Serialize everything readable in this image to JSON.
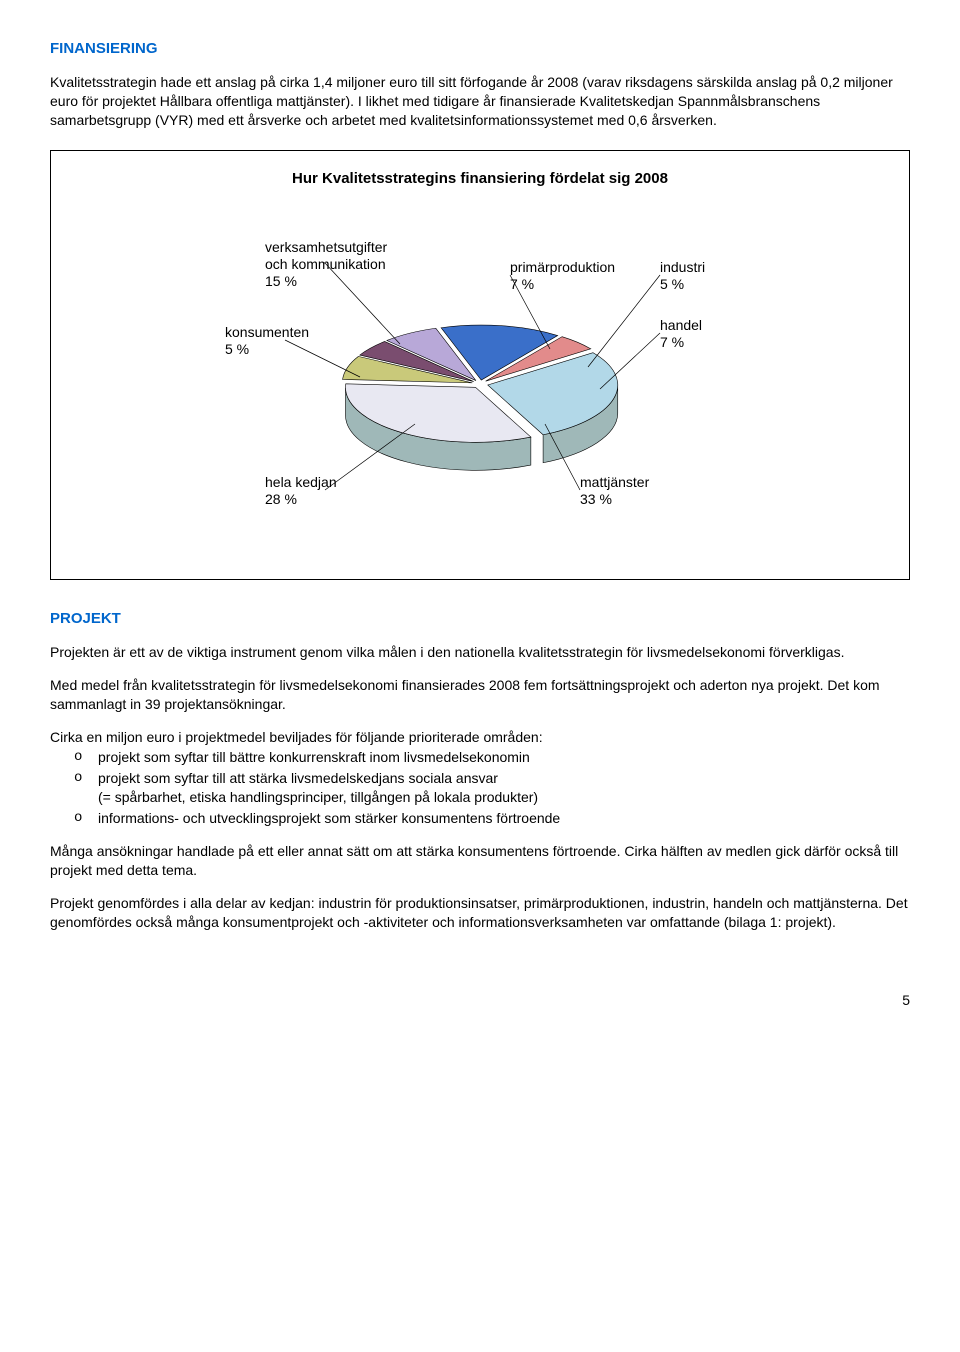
{
  "heading1": "FINANSIERING",
  "para1": "Kvalitetsstrategin hade ett anslag på cirka 1,4 miljoner euro till sitt förfogande år 2008 (varav riksdagens särskilda anslag på 0,2 miljoner euro för projektet Hållbara offentliga mattjänster). I likhet med tidigare år finansierade Kvalitetskedjan Spannmålsbranschens samarbetsgrupp (VYR) med ett årsverke och arbetet med kvalitetsinformationssystemet med 0,6 årsverken.",
  "chart": {
    "title": "Hur Kvalitetsstrategins finansiering fördelat sig 2008",
    "slices": [
      {
        "key": "verksamhet",
        "label_lines": [
          "verksamhetsutgifter",
          "och kommunikation",
          "15 %"
        ],
        "value": 15,
        "color": "#3a6fc9"
      },
      {
        "key": "konsumenten",
        "label_lines": [
          "konsumenten",
          "5 %"
        ],
        "value": 5,
        "color": "#e28b8b"
      },
      {
        "key": "helakedjan",
        "label_lines": [
          "hela kedjan",
          "28 %"
        ],
        "value": 28,
        "color": "#b2d8e8"
      },
      {
        "key": "mattjanster",
        "label_lines": [
          "mattjänster",
          "33 %"
        ],
        "value": 33,
        "color": "#e8e8f2"
      },
      {
        "key": "handel",
        "label_lines": [
          "handel",
          "7 %"
        ],
        "value": 7,
        "color": "#c9c97a"
      },
      {
        "key": "industri",
        "label_lines": [
          "industri",
          "5 %"
        ],
        "value": 5,
        "color": "#7a4d6f"
      },
      {
        "key": "primar",
        "label_lines": [
          "primärproduktion",
          "7 %"
        ],
        "value": 7,
        "color": "#b8a8d8"
      }
    ],
    "side_color": "#9fb8b8",
    "outline": "#000000"
  },
  "heading2": "PROJEKT",
  "para2": "Projekten är ett av de viktiga instrument genom vilka målen i den nationella kvalitetsstrategin för livsmedelsekonomi förverkligas.",
  "para3": "Med medel från kvalitetsstrategin för livsmedelsekonomi finansierades 2008 fem fortsättningsprojekt och aderton nya projekt. Det kom sammanlagt in 39 projektansökningar.",
  "para4_intro": "Cirka en miljon euro i projektmedel beviljades för följande prioriterade områden:",
  "bullets": [
    "projekt som syftar till bättre konkurrenskraft inom livsmedelsekonomin",
    "projekt som syftar till att stärka livsmedelskedjans sociala ansvar\n(= spårbarhet, etiska handlingsprinciper, tillgången på lokala produkter)",
    "informations- och utvecklingsprojekt som stärker konsumentens förtroende"
  ],
  "para5": "Många ansökningar handlade på ett eller annat sätt om att stärka konsumentens förtroende. Cirka hälften av medlen gick därför också till projekt med detta tema.",
  "para6": "Projekt genomfördes i alla delar av kedjan: industrin för produktionsinsatser, primärproduktionen, industrin, handeln och mattjänsterna. Det genomfördes också många konsumentprojekt och -aktiviteter och informationsverksamheten var omfattande (bilaga 1: projekt).",
  "page_number": "5"
}
